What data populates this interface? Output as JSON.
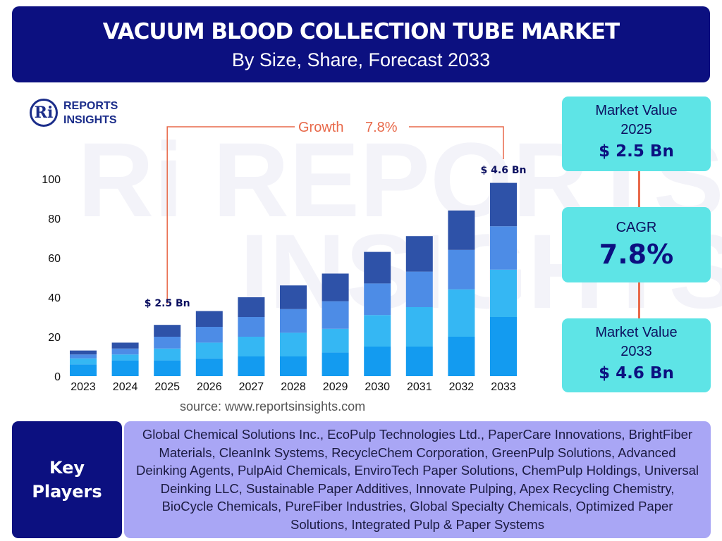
{
  "header": {
    "title": "VACUUM BLOOD COLLECTION TUBE MARKET",
    "subtitle": "By Size, Share, Forecast 2033"
  },
  "logo": {
    "mark": "Ri",
    "line1": "REPORTS",
    "line2": "INSIGHTS"
  },
  "watermark": {
    "mark": "Ri",
    "line1": "REPORTS",
    "line2": "INSIGHTS"
  },
  "source": "source: www.reportsinsights.com",
  "cards": {
    "market_value_2025": {
      "label_line1": "Market Value",
      "label_line2": "2025",
      "value": "$ 2.5 Bn"
    },
    "cagr": {
      "label": "CAGR",
      "value": "7.8%"
    },
    "market_value_2033": {
      "label_line1": "Market Value",
      "label_line2": "2033",
      "value": "$ 4.6 Bn"
    }
  },
  "key_players": {
    "label_line1": "Key",
    "label_line2": "Players",
    "text": "Global Chemical Solutions Inc., EcoPulp Technologies Ltd., PaperCare Innovations, BrightFiber Materials, CleanInk Systems, RecycleChem Corporation, GreenPulp Solutions, Advanced Deinking Agents, PulpAid Chemicals, EnviroTech Paper Solutions, ChemPulp Holdings, Universal Deinking LLC, Sustainable Paper Additives, Innovate Pulping, Apex Recycling Chemistry, BioCycle Chemicals, PureFiber Industries, Global Specialty Chemicals, Optimized Paper Solutions, Integrated Pulp & Paper Systems"
  },
  "colors": {
    "navy": "#0c1080",
    "cyan_card": "#5ee4e6",
    "lavender": "#a9a6f5",
    "accent_orange": "#e8694a",
    "series": [
      "#139bf0",
      "#35b7f3",
      "#4d8ce6",
      "#2e52a8"
    ]
  },
  "chart_data": {
    "type": "bar",
    "stacked": true,
    "categories": [
      "2023",
      "2024",
      "2025",
      "2026",
      "2027",
      "2028",
      "2029",
      "2030",
      "2031",
      "2032",
      "2033"
    ],
    "series": [
      {
        "values": [
          6,
          8,
          8,
          9,
          10,
          10,
          12,
          15,
          15,
          20,
          30
        ]
      },
      {
        "values": [
          3,
          3,
          6,
          8,
          10,
          12,
          12,
          16,
          20,
          24,
          24
        ]
      },
      {
        "values": [
          2,
          3,
          6,
          8,
          10,
          12,
          14,
          16,
          18,
          20,
          22
        ]
      },
      {
        "values": [
          2,
          3,
          6,
          8,
          10,
          12,
          14,
          16,
          18,
          20,
          22
        ]
      }
    ],
    "ylim": [
      0,
      100
    ],
    "yticks": [
      0,
      20,
      40,
      60,
      80,
      100
    ],
    "annotations": {
      "growth_label": "Growth",
      "growth_value": "7.8%",
      "start_label": "$ 2.5 Bn",
      "start_category": "2025",
      "end_label": "$ 4.6 Bn",
      "end_category": "2033"
    },
    "grid": false,
    "legend": "none"
  }
}
